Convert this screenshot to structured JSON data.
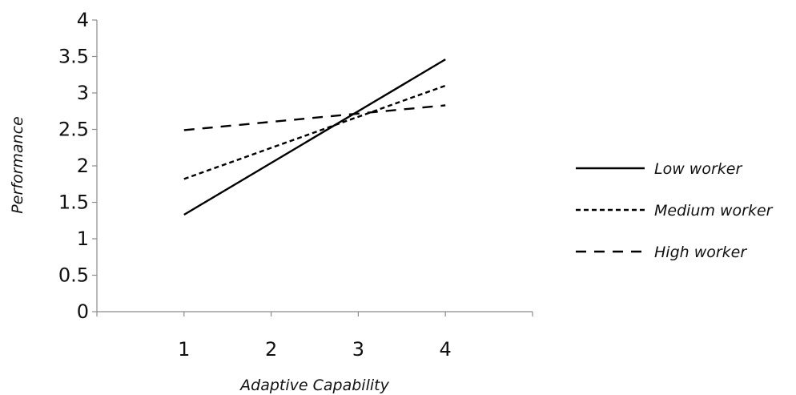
{
  "chart_data": {
    "type": "line",
    "title": "",
    "xlabel": "Adaptive Capability",
    "ylabel": "Performance",
    "x": [
      1,
      4
    ],
    "x_ticks": [
      "1",
      "2",
      "3",
      "4"
    ],
    "x_tick_values": [
      1,
      2,
      3,
      4
    ],
    "y_ticks": [
      "0",
      "0.5",
      "1",
      "1.5",
      "2",
      "2.5",
      "3",
      "3.5",
      "4"
    ],
    "y_tick_values": [
      0,
      0.5,
      1,
      1.5,
      2,
      2.5,
      3,
      3.5,
      4
    ],
    "xlim": [
      0,
      5
    ],
    "ylim": [
      0,
      4
    ],
    "grid": false,
    "legend_position": "right",
    "series": [
      {
        "name": "Low worker",
        "values": [
          1.33,
          3.46
        ],
        "dash": "solid",
        "color": "#000000"
      },
      {
        "name": "Medium worker",
        "values": [
          1.82,
          3.1
        ],
        "dash": "dotted",
        "color": "#000000"
      },
      {
        "name": "High worker",
        "values": [
          2.49,
          2.83
        ],
        "dash": "dashed",
        "color": "#000000"
      }
    ]
  }
}
